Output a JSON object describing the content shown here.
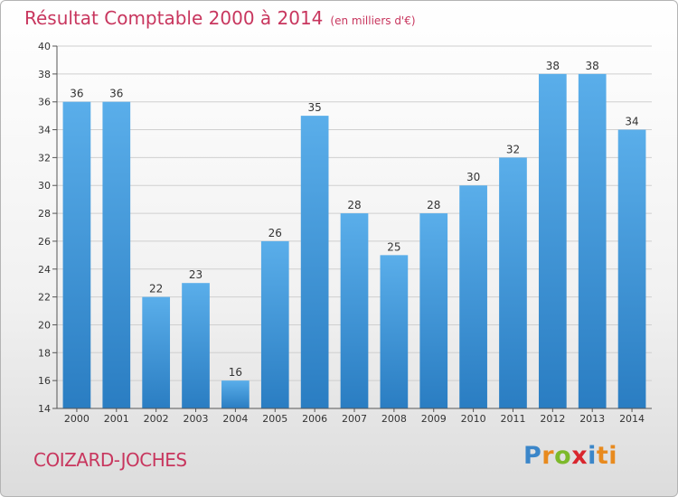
{
  "chart_data": {
    "type": "bar",
    "title": "Résultat Comptable 2000 à 2014",
    "subtitle": "(en milliers d'€)",
    "categories": [
      "2000",
      "2001",
      "2002",
      "2003",
      "2004",
      "2005",
      "2006",
      "2007",
      "2008",
      "2009",
      "2010",
      "2011",
      "2012",
      "2013",
      "2014"
    ],
    "values": [
      36,
      36,
      22,
      23,
      16,
      26,
      35,
      28,
      25,
      28,
      30,
      32,
      38,
      38,
      34
    ],
    "ylim": [
      14,
      40
    ],
    "yticks": [
      14,
      16,
      18,
      20,
      22,
      24,
      26,
      28,
      30,
      32,
      34,
      36,
      38,
      40
    ],
    "grid": true,
    "bar_color": "#3f9be0",
    "title_color": "#c8365e"
  },
  "footer": {
    "city": "COIZARD-JOCHES",
    "logo_letters": [
      "P",
      "r",
      "o",
      "x",
      "i",
      "ti"
    ]
  }
}
